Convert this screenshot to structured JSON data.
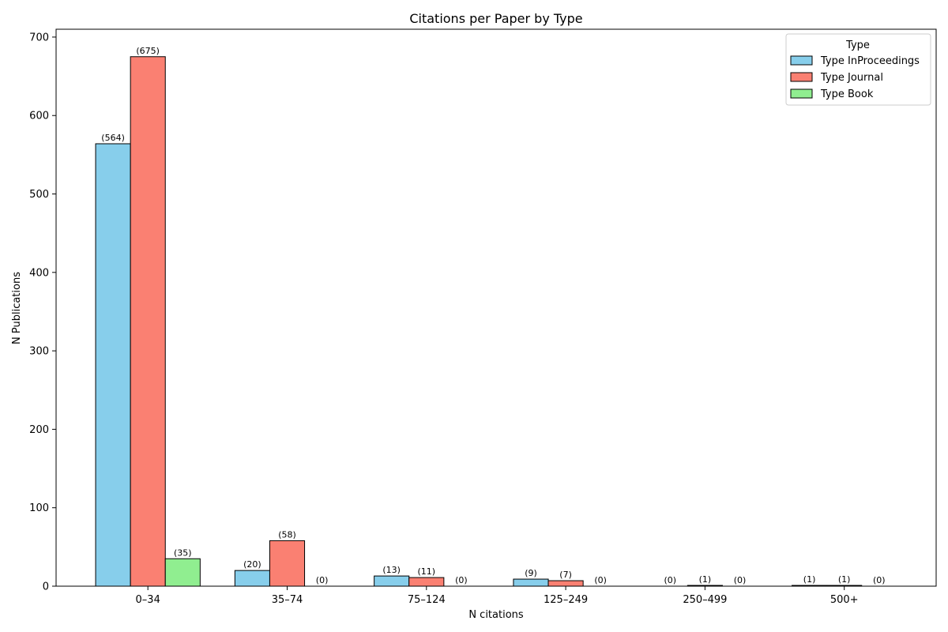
{
  "chart_data": {
    "type": "bar",
    "title": "Citations per Paper by Type",
    "xlabel": "N citations",
    "ylabel": "N Publications",
    "categories": [
      "0–34",
      "35–74",
      "75–124",
      "125–249",
      "250–499",
      "500+"
    ],
    "series": [
      {
        "name": "Type InProceedings",
        "color": "#87CEEB",
        "values": [
          564,
          20,
          13,
          9,
          0,
          1
        ]
      },
      {
        "name": "Type Journal",
        "color": "#FA8072",
        "values": [
          675,
          58,
          11,
          7,
          1,
          1
        ]
      },
      {
        "name": "Type Book",
        "color": "#90EE90",
        "values": [
          35,
          0,
          0,
          0,
          0,
          0
        ]
      }
    ],
    "ylim": [
      0,
      710
    ],
    "yticks": [
      0,
      100,
      200,
      300,
      400,
      500,
      600,
      700
    ],
    "grid": false,
    "legend": {
      "title": "Type",
      "placement": "top-right"
    },
    "value_label_format": "parentheses"
  }
}
